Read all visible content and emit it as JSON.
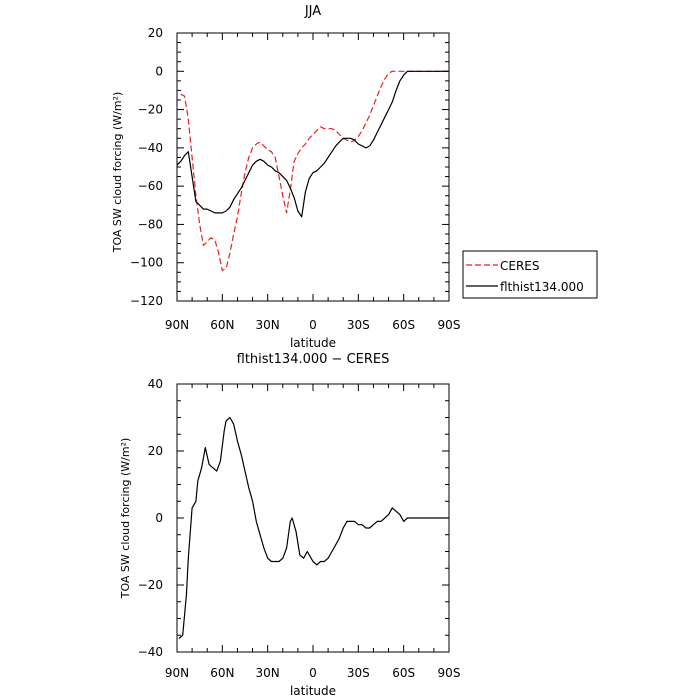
{
  "chart_data": [
    {
      "type": "line",
      "title": "JJA",
      "xlabel": "latitude",
      "ylabel": "TOA SW cloud forcing (W/m²)",
      "xlim": [
        90,
        -90
      ],
      "ylim": [
        -120,
        20
      ],
      "x_ticks": [
        90,
        60,
        30,
        0,
        -30,
        -60,
        -90
      ],
      "x_tick_labels": [
        "90N",
        "60N",
        "30N",
        "0",
        "30S",
        "60S",
        "90S"
      ],
      "y_ticks": [
        20,
        0,
        -20,
        -40,
        -60,
        -80,
        -100,
        -120
      ],
      "y_tick_labels": [
        "20",
        "0",
        "−20",
        "−40",
        "−60",
        "−80",
        "−100",
        "−120"
      ],
      "legend_position": "right",
      "series": [
        {
          "name": "CERES",
          "color": "#e8221e",
          "dash": "dashed",
          "x": [
            87.5,
            85,
            82.5,
            80,
            77.5,
            75,
            72.5,
            70,
            67.5,
            65,
            62.5,
            60,
            57.5,
            55,
            52.5,
            50,
            47.5,
            45,
            42.5,
            40,
            37.5,
            35,
            32.5,
            30,
            27.5,
            25,
            22.5,
            20,
            17.5,
            15,
            12.5,
            10,
            7.5,
            5,
            2.5,
            0,
            -2.5,
            -5,
            -7.5,
            -10,
            -12.5,
            -15,
            -17.5,
            -20,
            -22.5,
            -25,
            -27.5,
            -30,
            -32.5,
            -35,
            -37.5,
            -40,
            -42.5,
            -45,
            -47.5,
            -50,
            -52.5,
            -55,
            -57.5,
            -60,
            -62.5,
            -65,
            -67.5,
            -70,
            -72.5,
            -75,
            -77.5,
            -80,
            -82.5,
            -85,
            -87.5,
            -90
          ],
          "values": [
            -12,
            -13,
            -25,
            -45,
            -65,
            -80,
            -91,
            -89,
            -87,
            -88,
            -95,
            -104,
            -103,
            -95,
            -85,
            -76,
            -64,
            -53,
            -45,
            -40,
            -38,
            -37,
            -39,
            -41,
            -42,
            -45,
            -55,
            -65,
            -74,
            -62,
            -47,
            -43,
            -40,
            -38,
            -35,
            -33,
            -31,
            -29,
            -30,
            -30,
            -30,
            -31,
            -33,
            -35,
            -36,
            -37,
            -36,
            -34,
            -31,
            -27,
            -23,
            -18,
            -13,
            -8,
            -4,
            -1,
            0,
            0,
            0,
            0,
            0,
            0,
            0,
            0,
            0,
            0,
            0,
            0,
            0,
            0,
            0,
            0
          ]
        },
        {
          "name": "flthist134.000",
          "color": "#000000",
          "dash": "solid",
          "x": [
            90,
            87.5,
            85,
            82.5,
            80,
            77.5,
            75,
            72.5,
            70,
            67.5,
            65,
            62.5,
            60,
            57.5,
            55,
            52.5,
            50,
            47.5,
            45,
            42.5,
            40,
            37.5,
            35,
            32.5,
            30,
            27.5,
            25,
            22.5,
            20,
            17.5,
            15,
            12.5,
            10,
            7.5,
            5,
            2.5,
            0,
            -2.5,
            -5,
            -7.5,
            -10,
            -12.5,
            -15,
            -17.5,
            -20,
            -22.5,
            -25,
            -27.5,
            -30,
            -32.5,
            -35,
            -37.5,
            -40,
            -42.5,
            -45,
            -47.5,
            -50,
            -52.5,
            -55,
            -57.5,
            -60,
            -62.5,
            -65,
            -67.5,
            -70,
            -72.5,
            -75,
            -77.5,
            -80,
            -82.5,
            -85,
            -87.5,
            -90
          ],
          "values": [
            -49,
            -47,
            -44,
            -42,
            -55,
            -68,
            -70,
            -72,
            -72,
            -73,
            -74,
            -74,
            -74,
            -73,
            -71,
            -67,
            -64,
            -61,
            -57,
            -53,
            -49,
            -47,
            -46,
            -47,
            -49,
            -50,
            -52,
            -53,
            -55,
            -57,
            -61,
            -66,
            -73,
            -76,
            -63,
            -56,
            -53,
            -52,
            -50,
            -48,
            -45,
            -42,
            -39,
            -37,
            -35,
            -35,
            -35,
            -36,
            -38,
            -39,
            -40,
            -39,
            -36,
            -32,
            -28,
            -24,
            -20,
            -16,
            -10,
            -5,
            -2,
            0,
            0,
            0,
            0,
            0,
            0,
            0,
            0,
            0,
            0,
            0,
            0
          ]
        }
      ]
    },
    {
      "type": "line",
      "title": "flthist134.000 − CERES",
      "xlabel": "latitude",
      "ylabel": "TOA SW cloud forcing (W/m²)",
      "xlim": [
        90,
        -90
      ],
      "ylim": [
        -40,
        40
      ],
      "x_ticks": [
        90,
        60,
        30,
        0,
        -30,
        -60,
        -90
      ],
      "x_tick_labels": [
        "90N",
        "60N",
        "30N",
        "0",
        "30S",
        "60S",
        "90S"
      ],
      "y_ticks": [
        40,
        20,
        0,
        -20,
        -40
      ],
      "y_tick_labels": [
        "40",
        "20",
        "0",
        "−20",
        "−40"
      ],
      "series": [
        {
          "color": "#000000",
          "dash": "solid",
          "x": [
            88.75,
            86.25,
            83.75,
            82.5,
            80,
            77.5,
            76.25,
            73.75,
            71.25,
            68.75,
            66.25,
            63.75,
            61.25,
            58.75,
            57.5,
            55,
            52.5,
            50,
            47.5,
            45,
            42.5,
            40,
            37.5,
            35,
            32.5,
            30,
            27.5,
            25,
            22.5,
            20,
            17.5,
            15,
            13.75,
            11.25,
            8.75,
            6.25,
            3.75,
            1.25,
            0,
            -2.5,
            -5,
            -7.5,
            -10,
            -12.5,
            -15,
            -17.5,
            -20,
            -22.5,
            -25,
            -27.5,
            -30,
            -32.5,
            -35,
            -37.5,
            -40,
            -42.5,
            -45,
            -47.5,
            -50,
            -52.5,
            -55,
            -57.5,
            -60,
            -62.5,
            -65,
            -67.5,
            -70,
            -72.5,
            -75,
            -77.5,
            -80,
            -82.5,
            -85,
            -87.5,
            -90
          ],
          "values": [
            -36,
            -35,
            -23,
            -12,
            3,
            5,
            11,
            15,
            21,
            16,
            15,
            14,
            17,
            26,
            29,
            30,
            28,
            23,
            19,
            14,
            9,
            5,
            -1,
            -5,
            -9,
            -12,
            -13,
            -13,
            -13,
            -12,
            -9,
            -1,
            0,
            -4,
            -11,
            -12,
            -10,
            -12,
            -13,
            -14,
            -13,
            -13,
            -12,
            -10,
            -8,
            -6,
            -3,
            -1,
            -1,
            -1,
            -2,
            -2,
            -3,
            -3,
            -2,
            -1,
            -1,
            0,
            1,
            3,
            2,
            1,
            -1,
            0,
            0,
            0,
            0,
            0,
            0,
            0,
            0,
            0,
            0,
            0,
            0
          ]
        }
      ]
    }
  ]
}
